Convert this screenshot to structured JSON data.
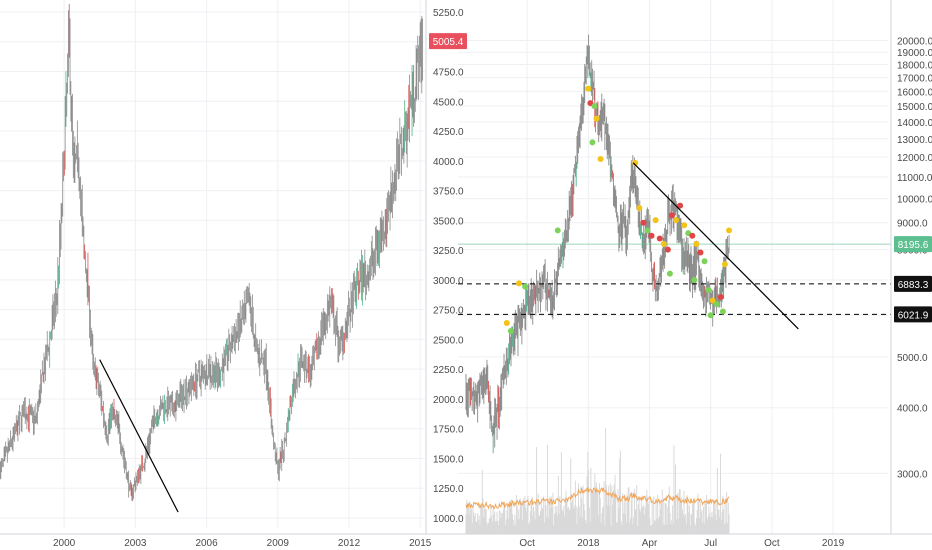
{
  "layout_note_free": true,
  "theme": {
    "background": "#ffffff",
    "grid": "#eef0f3",
    "axis_text": "#4a4a4a",
    "axis_line": "#cfd3d8",
    "candle": "#8a8a8a",
    "bull_accent": "#4fb28b",
    "bear_accent": "#d9534f",
    "trendline": "#000000",
    "dashed": "#000000",
    "price_badge_red": "#e9505d",
    "price_badge_green": "#5cbf8f",
    "price_badge_black": "#111111",
    "dot_green": "#7dd35a",
    "dot_red": "#e04646",
    "dot_yellow": "#f2c417",
    "volume": "#d9d9d9",
    "volume_ma": "#f0a65a"
  },
  "chart_data": [
    {
      "type": "candlestick",
      "x_tick_labels": [
        "2000",
        "2003",
        "2006",
        "2009",
        "2012",
        "2015"
      ],
      "x_tick_years": [
        2000,
        2003,
        2006,
        2009,
        2012,
        2015
      ],
      "xlim": [
        1997.3,
        2015.2
      ],
      "y_tick_labels": [
        "1000.0",
        "1250.0",
        "1500.0",
        "1750.0",
        "2000.0",
        "2250.0",
        "2500.0",
        "2750.0",
        "3000.0",
        "3250.0",
        "3500.0",
        "3750.0",
        "4000.0",
        "4250.0",
        "4500.0",
        "4750.0",
        "5000.0",
        "5250.0"
      ],
      "ylim": [
        1000,
        5250
      ],
      "y_scale": "linear",
      "grid": true,
      "last_price": "5005.4",
      "last_price_value": 5005.4,
      "path_points": [
        [
          1997.3,
          1400
        ],
        [
          1997.8,
          1650
        ],
        [
          1998.3,
          1900
        ],
        [
          1998.8,
          1820
        ],
        [
          1999.1,
          2200
        ],
        [
          1999.4,
          2500
        ],
        [
          1999.7,
          2900
        ],
        [
          1999.9,
          3600
        ],
        [
          2000.05,
          4300
        ],
        [
          2000.2,
          5050
        ],
        [
          2000.4,
          3900
        ],
        [
          2000.6,
          4050
        ],
        [
          2000.8,
          3300
        ],
        [
          2001.0,
          2950
        ],
        [
          2001.2,
          2300
        ],
        [
          2001.5,
          2050
        ],
        [
          2001.8,
          1700
        ],
        [
          2002.0,
          1900
        ],
        [
          2002.3,
          1750
        ],
        [
          2002.6,
          1400
        ],
        [
          2002.8,
          1200
        ],
        [
          2003.0,
          1300
        ],
        [
          2003.4,
          1500
        ],
        [
          2003.8,
          1850
        ],
        [
          2004.2,
          1950
        ],
        [
          2004.6,
          1920
        ],
        [
          2005.0,
          2050
        ],
        [
          2005.5,
          2150
        ],
        [
          2006.0,
          2250
        ],
        [
          2006.5,
          2200
        ],
        [
          2007.0,
          2450
        ],
        [
          2007.5,
          2650
        ],
        [
          2007.8,
          2820
        ],
        [
          2008.1,
          2400
        ],
        [
          2008.5,
          2300
        ],
        [
          2008.8,
          1650
        ],
        [
          2009.0,
          1400
        ],
        [
          2009.3,
          1650
        ],
        [
          2009.6,
          2050
        ],
        [
          2010.0,
          2350
        ],
        [
          2010.4,
          2200
        ],
        [
          2010.8,
          2550
        ],
        [
          2011.2,
          2800
        ],
        [
          2011.6,
          2450
        ],
        [
          2012.0,
          2700
        ],
        [
          2012.4,
          3000
        ],
        [
          2012.8,
          3050
        ],
        [
          2013.2,
          3300
        ],
        [
          2013.6,
          3550
        ],
        [
          2014.0,
          3950
        ],
        [
          2014.4,
          4300
        ],
        [
          2014.8,
          4700
        ],
        [
          2015.1,
          5005.4
        ]
      ],
      "trendline": [
        [
          2001.5,
          2330
        ],
        [
          2004.8,
          1050
        ]
      ]
    },
    {
      "type": "candlestick",
      "x_tick_labels": [
        "Oct",
        "2018",
        "Apr",
        "Jul",
        "Oct",
        "2019"
      ],
      "x_tick_months": [
        9,
        12,
        15,
        18,
        21,
        24
      ],
      "xlim": [
        6.0,
        26.5
      ],
      "y_tick_labels": [
        "3000.0",
        "4000.0",
        "5000.0",
        "6000.0",
        "7000.0",
        "8000.0",
        "9000.0",
        "10000.0",
        "11000.0",
        "12000.0",
        "13000.0",
        "14000.0",
        "15000.0",
        "16000.0",
        "17000.0",
        "18000.0",
        "19000.0",
        "20000.0"
      ],
      "y_tick_values": [
        3000,
        4000,
        5000,
        6000,
        7000,
        8000,
        9000,
        10000,
        11000,
        12000,
        13000,
        14000,
        15000,
        16000,
        17000,
        18000,
        19000,
        20000
      ],
      "y_scale": "log",
      "ylim": [
        2300,
        21500
      ],
      "grid": true,
      "price_labels": [
        {
          "text": "8195.6",
          "value": 8195.6,
          "style": "green"
        },
        {
          "text": "6883.3",
          "value": 6883.3,
          "style": "black",
          "line": "dashed"
        },
        {
          "text": "6021.9",
          "value": 6021.9,
          "style": "black",
          "line": "dashed"
        }
      ],
      "path_points": [
        [
          6.0,
          4300
        ],
        [
          6.5,
          4100
        ],
        [
          7.0,
          4600
        ],
        [
          7.3,
          3600
        ],
        [
          7.7,
          4200
        ],
        [
          8.0,
          5000
        ],
        [
          8.5,
          5700
        ],
        [
          9.0,
          6200
        ],
        [
          9.4,
          6500
        ],
        [
          9.8,
          7000
        ],
        [
          10.2,
          6400
        ],
        [
          10.6,
          7500
        ],
        [
          11.0,
          9000
        ],
        [
          11.3,
          11000
        ],
        [
          11.6,
          14000
        ],
        [
          11.8,
          16500
        ],
        [
          12.0,
          19500
        ],
        [
          12.1,
          17000
        ],
        [
          12.3,
          15500
        ],
        [
          12.5,
          13500
        ],
        [
          12.7,
          15000
        ],
        [
          12.9,
          13000
        ],
        [
          13.1,
          11500
        ],
        [
          13.3,
          10000
        ],
        [
          13.5,
          8500
        ],
        [
          13.7,
          9500
        ],
        [
          13.9,
          8200
        ],
        [
          14.1,
          11200
        ],
        [
          14.3,
          10500
        ],
        [
          14.5,
          9000
        ],
        [
          14.7,
          8300
        ],
        [
          14.9,
          9300
        ],
        [
          15.1,
          7500
        ],
        [
          15.3,
          6800
        ],
        [
          15.5,
          7200
        ],
        [
          15.7,
          8100
        ],
        [
          15.9,
          9200
        ],
        [
          16.1,
          9700
        ],
        [
          16.3,
          9300
        ],
        [
          16.5,
          8400
        ],
        [
          16.7,
          7700
        ],
        [
          16.9,
          7500
        ],
        [
          17.1,
          7300
        ],
        [
          17.3,
          7700
        ],
        [
          17.5,
          7100
        ],
        [
          17.7,
          6500
        ],
        [
          17.9,
          6600
        ],
        [
          18.1,
          6300
        ],
        [
          18.3,
          6500
        ],
        [
          18.5,
          6700
        ],
        [
          18.7,
          7500
        ],
        [
          18.9,
          8195.6
        ]
      ],
      "trendline": [
        [
          14.2,
          11700
        ],
        [
          22.3,
          5650
        ]
      ],
      "dots": [
        [
          12.0,
          16200,
          "yellow"
        ],
        [
          12.1,
          15200,
          "red"
        ],
        [
          12.3,
          15000,
          "green"
        ],
        [
          12.4,
          14200,
          "yellow"
        ],
        [
          12.2,
          12800,
          "green"
        ],
        [
          12.6,
          11900,
          "yellow"
        ],
        [
          14.3,
          11700,
          "yellow"
        ],
        [
          8.6,
          6900,
          "yellow"
        ],
        [
          8.9,
          6800,
          "green"
        ],
        [
          8.0,
          5800,
          "yellow"
        ],
        [
          8.2,
          5600,
          "green"
        ],
        [
          10.5,
          8700,
          "green"
        ],
        [
          14.5,
          9600,
          "yellow"
        ],
        [
          14.7,
          9000,
          "red"
        ],
        [
          14.9,
          8700,
          "green"
        ],
        [
          15.1,
          8500,
          "red"
        ],
        [
          15.3,
          9100,
          "yellow"
        ],
        [
          15.5,
          8400,
          "red"
        ],
        [
          15.7,
          8200,
          "yellow"
        ],
        [
          15.9,
          8000,
          "red"
        ],
        [
          16.1,
          9300,
          "red"
        ],
        [
          16.3,
          9100,
          "yellow"
        ],
        [
          16.5,
          9700,
          "red"
        ],
        [
          16.7,
          8900,
          "yellow"
        ],
        [
          16.9,
          8600,
          "green"
        ],
        [
          17.1,
          8500,
          "red"
        ],
        [
          17.3,
          8200,
          "yellow"
        ],
        [
          17.5,
          7900,
          "red"
        ],
        [
          17.7,
          7600,
          "green"
        ],
        [
          17.9,
          6700,
          "green"
        ],
        [
          18.1,
          6400,
          "yellow"
        ],
        [
          18.3,
          6300,
          "green"
        ],
        [
          18.5,
          6500,
          "red"
        ],
        [
          18.7,
          7500,
          "yellow"
        ],
        [
          18.9,
          8700,
          "yellow"
        ],
        [
          16.0,
          7200,
          "green"
        ],
        [
          17.2,
          7000,
          "green"
        ],
        [
          18.0,
          6000,
          "green"
        ],
        [
          18.6,
          6100,
          "green"
        ]
      ]
    }
  ]
}
